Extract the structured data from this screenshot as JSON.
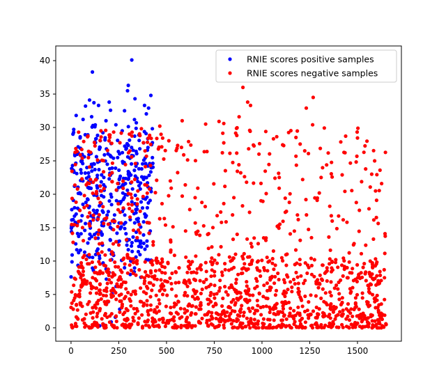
{
  "chart_data": {
    "type": "scatter",
    "title": "",
    "xlabel": "",
    "ylabel": "",
    "xlim": [
      -80,
      1730
    ],
    "ylim": [
      -2,
      42.2
    ],
    "xticks": [
      0,
      250,
      500,
      750,
      1000,
      1250,
      1500
    ],
    "yticks": [
      0,
      5,
      10,
      15,
      20,
      25,
      30,
      35,
      40
    ],
    "grid": false,
    "legend_position": "top-right",
    "series": [
      {
        "name": "RNIE scores positive samples",
        "color": "#0000ff",
        "x_range": [
          0,
          430
        ],
        "summary": "~420 points, dense band between y=10 and y=30, sparse to y=40",
        "points": [
          [
            318,
            40.1
          ],
          [
            112,
            38.3
          ],
          [
            300,
            36.3
          ],
          [
            296,
            35.5
          ],
          [
            335,
            34.3
          ],
          [
            418,
            34.8
          ],
          [
            97,
            34.1
          ],
          [
            120,
            33.7
          ],
          [
            200,
            33.8
          ],
          [
            385,
            33.3
          ],
          [
            76,
            33.2
          ],
          [
            144,
            33.3
          ],
          [
            280,
            32.5
          ],
          [
            406,
            32.9
          ],
          [
            27,
            31.8
          ],
          [
            63,
            31.2
          ],
          [
            183,
            31.0
          ],
          [
            235,
            30.4
          ],
          [
            342,
            30.7
          ],
          [
            14,
            29.7
          ],
          [
            10,
            29.0
          ],
          [
            115,
            30.3
          ],
          [
            167,
            29.2
          ],
          [
            268,
            29.5
          ],
          [
            48,
            28.6
          ],
          [
            88,
            28.9
          ],
          [
            130,
            28.3
          ],
          [
            306,
            28.1
          ],
          [
            333,
            28.7
          ],
          [
            210,
            27.6
          ],
          [
            380,
            27.7
          ],
          [
            37,
            27.1
          ],
          [
            152,
            27.0
          ],
          [
            248,
            26.4
          ],
          [
            290,
            26.9
          ],
          [
            360,
            26.8
          ],
          [
            400,
            26.6
          ],
          [
            20,
            26.0
          ],
          [
            70,
            25.6
          ],
          [
            105,
            26.1
          ],
          [
            175,
            25.9
          ],
          [
            222,
            25.4
          ],
          [
            318,
            25.8
          ],
          [
            54,
            25.0
          ],
          [
            140,
            24.8
          ],
          [
            190,
            24.5
          ],
          [
            270,
            24.9
          ],
          [
            340,
            24.2
          ],
          [
            412,
            24.6
          ],
          [
            8,
            24.3
          ],
          [
            83,
            24.0
          ],
          [
            125,
            23.7
          ],
          [
            233,
            23.9
          ],
          [
            300,
            23.4
          ],
          [
            370,
            23.8
          ],
          [
            30,
            23.1
          ],
          [
            160,
            22.9
          ],
          [
            200,
            22.3
          ],
          [
            258,
            22.7
          ],
          [
            395,
            22.5
          ],
          [
            62,
            22.0
          ],
          [
            110,
            21.8
          ],
          [
            285,
            21.6
          ],
          [
            350,
            21.9
          ],
          [
            18,
            21.2
          ],
          [
            95,
            20.9
          ],
          [
            178,
            21.1
          ],
          [
            240,
            20.6
          ],
          [
            322,
            20.8
          ],
          [
            420,
            20.4
          ],
          [
            45,
            20.2
          ],
          [
            135,
            19.8
          ],
          [
            212,
            19.6
          ],
          [
            295,
            19.9
          ],
          [
            378,
            19.4
          ],
          [
            12,
            19.1
          ],
          [
            78,
            18.8
          ],
          [
            158,
            18.6
          ],
          [
            262,
            18.9
          ],
          [
            345,
            18.3
          ],
          [
            405,
            18.7
          ],
          [
            35,
            17.9
          ],
          [
            118,
            17.6
          ],
          [
            195,
            17.4
          ],
          [
            275,
            17.8
          ],
          [
            330,
            17.1
          ],
          [
            58,
            16.8
          ],
          [
            142,
            16.5
          ],
          [
            228,
            16.9
          ],
          [
            310,
            16.2
          ],
          [
            390,
            16.6
          ],
          [
            22,
            15.8
          ],
          [
            100,
            15.6
          ],
          [
            170,
            15.3
          ],
          [
            252,
            15.7
          ],
          [
            365,
            15.1
          ],
          [
            72,
            14.6
          ],
          [
            148,
            14.3
          ],
          [
            215,
            14.8
          ],
          [
            288,
            14.1
          ],
          [
            415,
            14.5
          ],
          [
            40,
            13.7
          ],
          [
            128,
            13.4
          ],
          [
            205,
            13.2
          ],
          [
            325,
            13.6
          ],
          [
            88,
            12.7
          ],
          [
            165,
            12.4
          ],
          [
            245,
            12.9
          ],
          [
            355,
            12.2
          ],
          [
            135,
            11.5
          ],
          [
            220,
            11.2
          ],
          [
            300,
            11.7
          ],
          [
            150,
            10.4
          ],
          [
            265,
            10.1
          ],
          [
            340,
            10.6
          ],
          [
            172,
            9.4
          ],
          [
            280,
            9.0
          ],
          [
            200,
            8.3
          ],
          [
            310,
            8.0
          ],
          [
            185,
            7.3
          ],
          [
            236,
            6.2
          ],
          [
            215,
            5.1
          ],
          [
            195,
            3.9
          ],
          [
            255,
            2.8
          ],
          [
            232,
            1.6
          ],
          [
            175,
            0.4
          ],
          [
            210,
            0.9
          ],
          [
            150,
            0.3
          ]
        ]
      },
      {
        "name": "RNIE scores negative samples",
        "color": "#ff0000",
        "x_range": [
          0,
          1650
        ],
        "summary": "~1650 points, dense band between y=0 and y=10, sparse to y=36",
        "points": [
          [
            900,
            36.0
          ],
          [
            1268,
            34.5
          ],
          [
            925,
            33.8
          ],
          [
            940,
            33.3
          ],
          [
            1232,
            32.9
          ],
          [
            880,
            31.6
          ],
          [
            582,
            31.0
          ],
          [
            775,
            30.9
          ],
          [
            465,
            30.2
          ],
          [
            800,
            30.6
          ],
          [
            705,
            30.5
          ],
          [
            1265,
            30.4
          ],
          [
            1020,
            29.4
          ],
          [
            868,
            28.8
          ],
          [
            1178,
            28.5
          ],
          [
            1060,
            28.3
          ],
          [
            800,
            27.7
          ],
          [
            1108,
            27.4
          ],
          [
            475,
            27.1
          ],
          [
            930,
            26.8
          ],
          [
            712,
            26.4
          ],
          [
            590,
            25.9
          ],
          [
            1178,
            25.7
          ],
          [
            1590,
            25.0
          ],
          [
            1618,
            23.6
          ],
          [
            1420,
            22.9
          ],
          [
            1068,
            22.4
          ],
          [
            520,
            22.0
          ],
          [
            1090,
            20.9
          ],
          [
            350,
            20.5
          ],
          [
            1022,
            20.1
          ],
          [
            650,
            19.5
          ],
          [
            1230,
            19.2
          ],
          [
            1600,
            19.1
          ],
          [
            800,
            18.6
          ],
          [
            1355,
            18.2
          ],
          [
            1510,
            17.6
          ],
          [
            935,
            17.3
          ],
          [
            765,
            16.8
          ],
          [
            1190,
            16.2
          ],
          [
            1445,
            15.8
          ],
          [
            1080,
            15.2
          ],
          [
            600,
            14.5
          ],
          [
            870,
            14.0
          ],
          [
            1350,
            13.6
          ],
          [
            1200,
            13.1
          ],
          [
            980,
            12.6
          ],
          [
            430,
            12.4
          ],
          [
            720,
            11.9
          ],
          [
            1060,
            11.5
          ],
          [
            1520,
            11.1
          ],
          [
            830,
            10.6
          ],
          [
            1275,
            10.2
          ],
          [
            1385,
            9.8
          ],
          [
            680,
            9.4
          ],
          [
            1010,
            9.0
          ],
          [
            1640,
            8.7
          ],
          [
            550,
            8.3
          ],
          [
            1130,
            7.9
          ],
          [
            1450,
            7.5
          ],
          [
            780,
            7.1
          ],
          [
            1290,
            6.6
          ],
          [
            610,
            6.2
          ],
          [
            930,
            5.8
          ],
          [
            1560,
            5.4
          ],
          [
            480,
            5.0
          ],
          [
            1200,
            4.6
          ],
          [
            850,
            4.2
          ],
          [
            1420,
            3.8
          ],
          [
            680,
            3.4
          ],
          [
            1060,
            3.0
          ],
          [
            1610,
            2.6
          ],
          [
            520,
            2.2
          ],
          [
            1330,
            1.8
          ],
          [
            760,
            1.4
          ],
          [
            980,
            1.0
          ],
          [
            1500,
            0.7
          ],
          [
            610,
            0.4
          ],
          [
            1180,
            0.2
          ],
          [
            1650,
            0.5
          ]
        ]
      }
    ]
  }
}
